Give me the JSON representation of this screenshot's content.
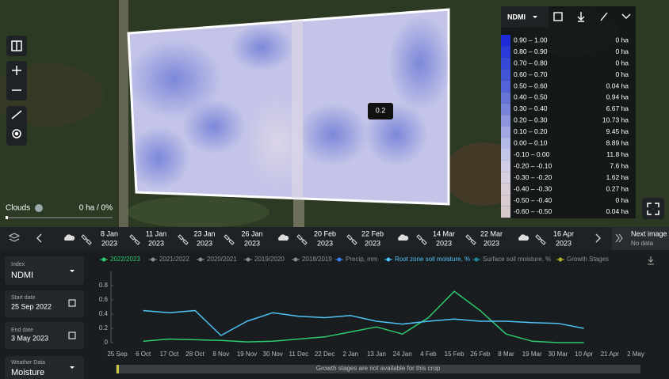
{
  "map": {
    "tooltip": "0.2",
    "clouds_label": "Clouds",
    "clouds_value": "0 ha / 0%"
  },
  "legend_panel": {
    "index": "NDMI",
    "rows": [
      {
        "range": "0.90 – 1.00",
        "area": "0 ha",
        "color": "#1f2ad8"
      },
      {
        "range": "0.80 – 0.90",
        "area": "0 ha",
        "color": "#2a3bd9"
      },
      {
        "range": "0.70 – 0.80",
        "area": "0 ha",
        "color": "#3549d6"
      },
      {
        "range": "0.60 – 0.70",
        "area": "0 ha",
        "color": "#4255d6"
      },
      {
        "range": "0.50 – 0.60",
        "area": "0.04 ha",
        "color": "#5563d8"
      },
      {
        "range": "0.40 – 0.50",
        "area": "0.94 ha",
        "color": "#6673d9"
      },
      {
        "range": "0.30 – 0.40",
        "area": "6.67 ha",
        "color": "#7884db"
      },
      {
        "range": "0.20 – 0.30",
        "area": "10.73 ha",
        "color": "#8d96de"
      },
      {
        "range": "0.10 – 0.20",
        "area": "9.45 ha",
        "color": "#a1a8e2"
      },
      {
        "range": "0.00 – 0.10",
        "area": "8.89 ha",
        "color": "#b4b9e6"
      },
      {
        "range": "-0.10 – 0.00",
        "area": "11.8 ha",
        "color": "#c4c6e8"
      },
      {
        "range": "-0.20 – -0.10",
        "area": "7.6 ha",
        "color": "#cfcde6"
      },
      {
        "range": "-0.30 – -0.20",
        "area": "1.62 ha",
        "color": "#d6cfe0"
      },
      {
        "range": "-0.40 – -0.30",
        "area": "0.27 ha",
        "color": "#d9cfd9"
      },
      {
        "range": "-0.50 – -0.40",
        "area": "0 ha",
        "color": "#d8ccd0"
      },
      {
        "range": "-0.60 – -0.50",
        "area": "0.04 ha",
        "color": "#d5c8c8"
      }
    ]
  },
  "timeline": {
    "dates": [
      {
        "day": "8 Jan",
        "year": "2023"
      },
      {
        "day": "11 Jan",
        "year": "2023"
      },
      {
        "day": "23 Jan",
        "year": "2023"
      },
      {
        "day": "26 Jan",
        "year": "2023"
      },
      {
        "day": "20 Feb",
        "year": "2023"
      },
      {
        "day": "22 Feb",
        "year": "2023"
      },
      {
        "day": "14 Mar",
        "year": "2023"
      },
      {
        "day": "22 Mar",
        "year": "2023"
      },
      {
        "day": "16 Apr",
        "year": "2023"
      }
    ],
    "next_label": "Next image",
    "next_sub": "No data"
  },
  "sidebar": {
    "index_label": "Index",
    "index_value": "NDMI",
    "start_label": "Start date",
    "start_value": "25 Sep 2022",
    "end_label": "End date",
    "end_value": "3 May 2023",
    "weather_label": "Weather Data",
    "weather_value": "Moisture"
  },
  "chart_data": {
    "type": "line",
    "categories": [
      "25 Sep",
      "6 Oct",
      "17 Oct",
      "28 Oct",
      "8 Nov",
      "19 Nov",
      "30 Nov",
      "11 Dec",
      "22 Dec",
      "2 Jan",
      "13 Jan",
      "24 Jan",
      "4 Feb",
      "15 Feb",
      "26 Feb",
      "8 Mar",
      "19 Mar",
      "30 Mar",
      "10 Apr",
      "21 Apr",
      "2 May"
    ],
    "ylim": [
      0,
      1
    ],
    "yticks": [
      0,
      0.2,
      0.4,
      0.6,
      0.8
    ],
    "series": [
      {
        "name": "2022/2023",
        "color": "#2ecc71",
        "values": [
          null,
          0.02,
          0.05,
          0.04,
          0.03,
          0.01,
          0.02,
          0.05,
          0.08,
          0.15,
          0.22,
          0.12,
          0.35,
          0.72,
          0.45,
          0.12,
          0.02,
          0,
          0,
          null,
          null
        ]
      },
      {
        "name": "2021/2022",
        "color": "#8a8f94"
      },
      {
        "name": "2020/2021",
        "color": "#8a8f94"
      },
      {
        "name": "2019/2020",
        "color": "#8a8f94"
      },
      {
        "name": "2018/2019",
        "color": "#8a8f94"
      },
      {
        "name": "Precip, mm",
        "color": "#3b82f6"
      },
      {
        "name": "Root zone soil moisture, %",
        "color": "#4fc3f7",
        "values": [
          null,
          0.45,
          0.42,
          0.45,
          0.1,
          0.3,
          0.42,
          0.37,
          0.35,
          0.38,
          0.3,
          0.26,
          0.3,
          0.33,
          0.3,
          0.3,
          0.28,
          0.27,
          0.2,
          null,
          null
        ]
      },
      {
        "name": "Surface soil moisture, %",
        "color": "#1f8a99"
      },
      {
        "name": "Growth Stages",
        "color": "#b5b02c"
      }
    ],
    "note": "Growth stages are not available for this crop"
  }
}
